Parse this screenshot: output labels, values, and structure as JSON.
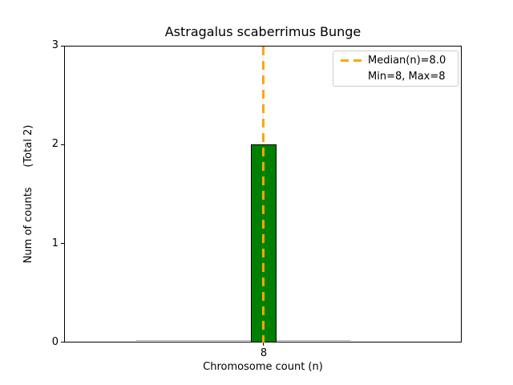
{
  "chart_data": {
    "type": "bar",
    "title": "Astragalus scaberrimus Bunge",
    "xlabel": "Chromosome count (n)",
    "ylabel": "Num of counts      (Total 2)",
    "categories": [
      "8"
    ],
    "values": [
      2
    ],
    "total_counts": 2,
    "ylim": [
      0,
      3
    ],
    "yticks": [
      "0",
      "1",
      "2",
      "3"
    ],
    "xticks": [
      "8"
    ],
    "grid": false,
    "legend_position": "upper right",
    "legend": [
      {
        "label": "Median(n)=8.0",
        "handle": "dashed-line",
        "color": "#FFA500"
      },
      {
        "label": "Min=8, Max=8",
        "handle": "none"
      }
    ],
    "median_line": {
      "x": 8,
      "value": 8.0,
      "style": "dashed",
      "orientation": "vertical"
    },
    "stats": {
      "median": 8.0,
      "min": 8,
      "max": 8
    },
    "colors": {
      "bar_fill": "#008000",
      "bar_edge": "#000000",
      "median_line": "#FFA500",
      "axes": "#000000",
      "background": "#FFFFFF",
      "legend_border": "#CCCCCC",
      "zero_bin_baseline": "#B0B0B0"
    }
  }
}
